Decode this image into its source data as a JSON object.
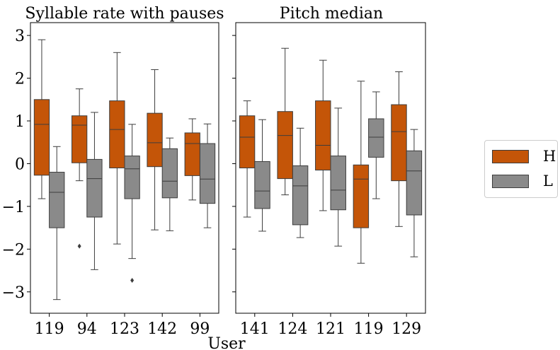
{
  "colors": {
    "H": "#c45508",
    "L": "#8a8a8a",
    "edge": "#3d3d3d",
    "axis": "#000000"
  },
  "xlabel": "User",
  "legend": {
    "placement": "right",
    "entries": [
      {
        "label": "H",
        "color": "#c45508"
      },
      {
        "label": "L",
        "color": "#8a8a8a"
      }
    ]
  },
  "chart_data": [
    {
      "type": "box",
      "title": "Syllable rate with pauses",
      "categories": [
        "119",
        "94",
        "123",
        "142",
        "99"
      ],
      "ylim": [
        -3.5,
        3.3
      ],
      "yticks": [
        -3,
        -2,
        -1,
        0,
        1,
        2,
        3
      ],
      "series": [
        {
          "name": "H",
          "boxes": [
            {
              "whislo": -0.82,
              "q1": -0.27,
              "med": 0.92,
              "q3": 1.5,
              "whishi": 2.9,
              "fliers": []
            },
            {
              "whislo": -0.4,
              "q1": 0.02,
              "med": 0.9,
              "q3": 1.12,
              "whishi": 1.75,
              "fliers": [
                -1.93
              ]
            },
            {
              "whislo": -1.88,
              "q1": -0.1,
              "med": 0.8,
              "q3": 1.47,
              "whishi": 2.6,
              "fliers": []
            },
            {
              "whislo": -1.55,
              "q1": -0.07,
              "med": 0.49,
              "q3": 1.18,
              "whishi": 2.2,
              "fliers": []
            },
            {
              "whislo": -0.85,
              "q1": -0.28,
              "med": 0.47,
              "q3": 0.72,
              "whishi": 1.05,
              "fliers": []
            }
          ]
        },
        {
          "name": "L",
          "boxes": [
            {
              "whislo": -3.18,
              "q1": -1.5,
              "med": -0.67,
              "q3": -0.2,
              "whishi": 0.4,
              "fliers": []
            },
            {
              "whislo": -2.48,
              "q1": -1.25,
              "med": -0.35,
              "q3": 0.1,
              "whishi": 1.2,
              "fliers": []
            },
            {
              "whislo": -2.22,
              "q1": -0.82,
              "med": -0.12,
              "q3": 0.18,
              "whishi": 0.92,
              "fliers": [
                -2.73
              ]
            },
            {
              "whislo": -1.57,
              "q1": -0.8,
              "med": -0.41,
              "q3": 0.35,
              "whishi": 0.6,
              "fliers": []
            },
            {
              "whislo": -1.5,
              "q1": -0.93,
              "med": -0.36,
              "q3": 0.47,
              "whishi": 0.93,
              "fliers": []
            }
          ]
        }
      ]
    },
    {
      "type": "box",
      "title": "Pitch median",
      "categories": [
        "141",
        "124",
        "121",
        "119",
        "129"
      ],
      "ylim": [
        -3.5,
        3.3
      ],
      "yticks": [
        -3,
        -2,
        -1,
        0,
        1,
        2,
        3
      ],
      "series": [
        {
          "name": "H",
          "boxes": [
            {
              "whislo": -1.25,
              "q1": -0.1,
              "med": 0.62,
              "q3": 1.12,
              "whishi": 1.47,
              "fliers": []
            },
            {
              "whislo": -0.73,
              "q1": -0.35,
              "med": 0.66,
              "q3": 1.22,
              "whishi": 2.7,
              "fliers": []
            },
            {
              "whislo": -1.1,
              "q1": -0.15,
              "med": 0.43,
              "q3": 1.47,
              "whishi": 2.42,
              "fliers": []
            },
            {
              "whislo": -2.33,
              "q1": -1.5,
              "med": -0.36,
              "q3": -0.03,
              "whishi": 1.93,
              "fliers": []
            },
            {
              "whislo": -1.47,
              "q1": -0.4,
              "med": 0.75,
              "q3": 1.38,
              "whishi": 2.15,
              "fliers": []
            }
          ]
        },
        {
          "name": "L",
          "boxes": [
            {
              "whislo": -1.58,
              "q1": -1.05,
              "med": -0.64,
              "q3": 0.05,
              "whishi": 1.03,
              "fliers": []
            },
            {
              "whislo": -1.73,
              "q1": -1.43,
              "med": -0.52,
              "q3": -0.05,
              "whishi": 0.83,
              "fliers": []
            },
            {
              "whislo": -1.93,
              "q1": -1.08,
              "med": -0.62,
              "q3": 0.18,
              "whishi": 1.3,
              "fliers": []
            },
            {
              "whislo": -0.82,
              "q1": 0.15,
              "med": 0.62,
              "q3": 1.05,
              "whishi": 1.68,
              "fliers": []
            },
            {
              "whislo": -2.18,
              "q1": -1.2,
              "med": -0.17,
              "q3": 0.3,
              "whishi": 0.8,
              "fliers": []
            }
          ]
        }
      ]
    }
  ]
}
